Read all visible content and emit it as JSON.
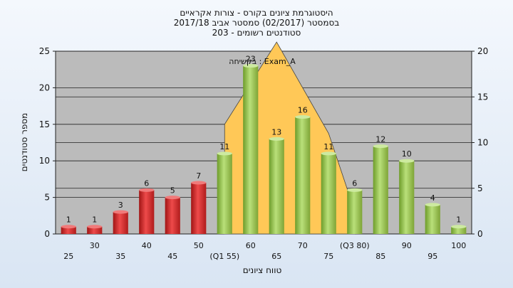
{
  "chart_data": {
    "type": "bar",
    "title_lines": [
      "היסטוגרמת ציונים בקורס - צורות אקראיים",
      "בסמסטר  (02/2017)  סמסטר אביב 2017/18",
      "סטודנטים רשומים - 203"
    ],
    "xlabel": "טווח ציונים",
    "ylabel": "מספר סטודנטים",
    "legend_label": "בקשיחה : Exam_A",
    "categories": [
      "25",
      "30",
      "35",
      "40",
      "45",
      "50",
      "(Q1 55)",
      "60",
      "65",
      "70",
      "75",
      "(Q3 80)",
      "85",
      "90",
      "95",
      "100"
    ],
    "values": [
      1,
      1,
      3,
      6,
      5,
      7,
      11,
      23,
      13,
      16,
      11,
      6,
      12,
      10,
      4,
      1
    ],
    "bar_colors": [
      "red",
      "red",
      "red",
      "red",
      "red",
      "red",
      "green",
      "green",
      "green",
      "green",
      "green",
      "green",
      "green",
      "green",
      "green",
      "green"
    ],
    "area_series": {
      "x": [
        "(Q1 55)",
        "65",
        "75",
        "(Q3 80)"
      ],
      "values": [
        12,
        21,
        11,
        2.5
      ],
      "color": "#ffc857"
    },
    "ylim_left": [
      0,
      25
    ],
    "yticks_left": [
      0,
      5,
      10,
      15,
      20,
      25
    ],
    "ylim_right": [
      0,
      20
    ],
    "yticks_right": [
      0,
      5,
      10,
      15,
      20
    ],
    "grid": true
  }
}
